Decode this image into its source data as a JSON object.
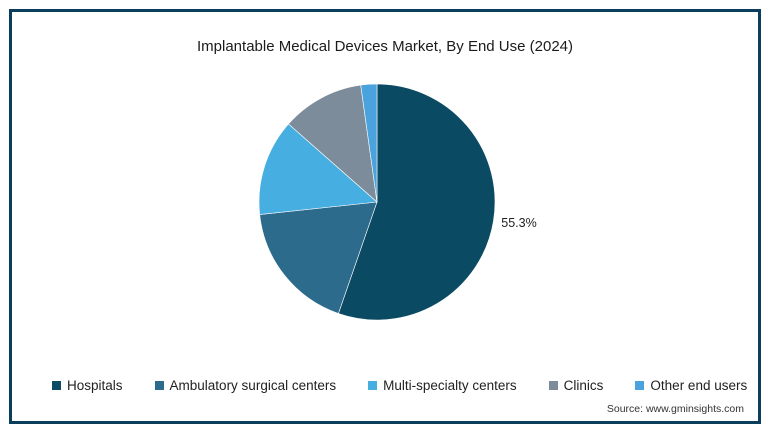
{
  "chart_data": {
    "type": "pie",
    "title": "Implantable Medical Devices Market, By End Use (2024)",
    "categories": [
      "Hospitals",
      "Ambulatory surgical centers",
      "Multi-specialty centers",
      "Clinics",
      "Other end users"
    ],
    "values": [
      55.3,
      18.0,
      13.2,
      11.3,
      2.2
    ],
    "colors": [
      "#0b4a63",
      "#2c6b8c",
      "#46aee0",
      "#7d8c9b",
      "#4aa3dd"
    ],
    "data_labels": [
      {
        "index": 0,
        "text": "55.3%"
      }
    ],
    "legend_position": "bottom",
    "start_angle_deg": 0,
    "direction": "clockwise"
  },
  "source": "Source: www.gminsights.com"
}
